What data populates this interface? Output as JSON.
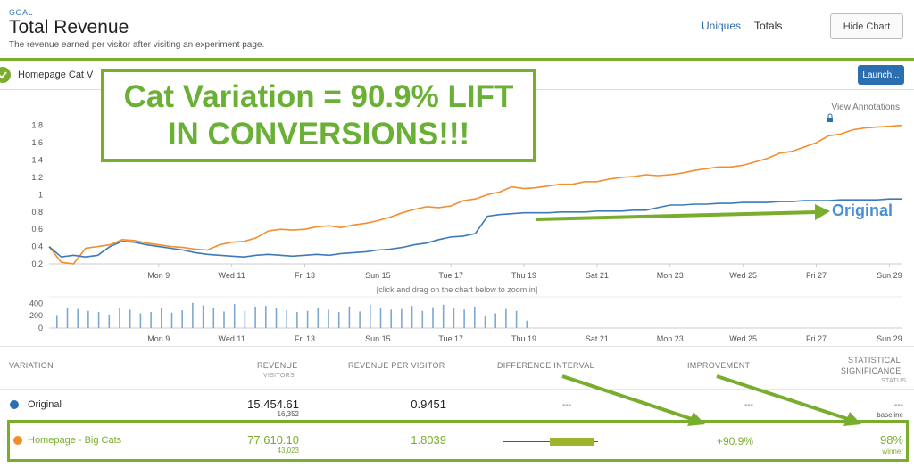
{
  "header": {
    "goal_label": "GOAL",
    "title": "Total Revenue",
    "subtitle": "The revenue earned per visitor after visiting an experiment page.",
    "tabs": [
      "Uniques",
      "Totals"
    ],
    "hide_chart": "Hide Chart"
  },
  "page_row": {
    "page_name": "Homepage Cat V",
    "launch": "Launch..."
  },
  "annotation": {
    "line1": "Cat Variation = 90.9% LIFT",
    "line2": "IN CONVERSIONS!!!",
    "series_label": "Original"
  },
  "chart": {
    "view_annotations": "View Annotations",
    "zoom_hint": "[click and drag on the chart below to zoom in]"
  },
  "chart_data": [
    {
      "type": "line",
      "x": [
        0,
        0.5,
        1,
        1.5,
        2,
        2.5,
        3,
        3.5,
        4,
        4.5,
        5,
        5.5,
        6,
        6.5,
        7,
        7.5,
        8,
        8.5,
        9,
        9.5,
        10,
        10.5,
        11,
        11.5,
        12,
        12.5,
        13,
        13.5,
        14,
        14.5,
        15,
        15.5,
        16,
        16.5,
        17,
        17.5,
        18,
        18.5,
        19,
        19.5,
        20,
        20.5,
        21,
        21.5,
        22,
        22.5,
        23,
        23.5,
        24,
        24.5,
        25,
        25.5,
        26,
        26.5,
        27,
        27.5,
        28,
        28.5,
        29,
        29.5,
        30,
        30.5,
        31,
        31.5,
        32,
        32.5,
        33,
        33.5,
        34,
        34.5,
        35
      ],
      "x_ticks": [
        "Mon 9",
        "Wed 11",
        "Fri 13",
        "Sun 15",
        "Tue 17",
        "Thu 19",
        "Sat 21",
        "Mon 23",
        "Wed 25",
        "Fri 27",
        "Sun 29"
      ],
      "y_ticks": [
        "0.2",
        "0.4",
        "0.6",
        "0.8",
        "1",
        "1.2",
        "1.4",
        "1.6",
        "1.8"
      ],
      "ylim": [
        0.2,
        1.9
      ],
      "series": [
        {
          "color": "#f28e2b",
          "values": [
            0.4,
            0.22,
            0.2,
            0.38,
            0.4,
            0.42,
            0.48,
            0.47,
            0.44,
            0.42,
            0.4,
            0.39,
            0.37,
            0.36,
            0.42,
            0.45,
            0.46,
            0.5,
            0.58,
            0.6,
            0.59,
            0.6,
            0.63,
            0.64,
            0.62,
            0.65,
            0.67,
            0.7,
            0.74,
            0.79,
            0.83,
            0.86,
            0.85,
            0.87,
            0.93,
            0.95,
            1.0,
            1.03,
            1.09,
            1.07,
            1.08,
            1.1,
            1.12,
            1.12,
            1.15,
            1.15,
            1.18,
            1.2,
            1.21,
            1.23,
            1.22,
            1.23,
            1.25,
            1.28,
            1.3,
            1.32,
            1.32,
            1.34,
            1.38,
            1.42,
            1.48,
            1.5,
            1.55,
            1.6,
            1.68,
            1.7,
            1.75,
            1.77,
            1.78,
            1.79,
            1.8
          ]
        },
        {
          "name": "Original",
          "color": "#3d7ab8",
          "values": [
            0.4,
            0.28,
            0.3,
            0.28,
            0.3,
            0.4,
            0.46,
            0.45,
            0.42,
            0.4,
            0.38,
            0.36,
            0.33,
            0.31,
            0.3,
            0.29,
            0.28,
            0.3,
            0.31,
            0.3,
            0.29,
            0.3,
            0.31,
            0.3,
            0.32,
            0.33,
            0.34,
            0.36,
            0.37,
            0.39,
            0.42,
            0.44,
            0.48,
            0.51,
            0.52,
            0.55,
            0.75,
            0.77,
            0.78,
            0.79,
            0.79,
            0.79,
            0.8,
            0.8,
            0.8,
            0.81,
            0.81,
            0.81,
            0.82,
            0.82,
            0.85,
            0.88,
            0.88,
            0.89,
            0.89,
            0.9,
            0.9,
            0.91,
            0.91,
            0.91,
            0.92,
            0.92,
            0.93,
            0.93,
            0.93,
            0.94,
            0.94,
            0.94,
            0.94,
            0.95,
            0.95
          ]
        }
      ]
    },
    {
      "type": "bar",
      "y_ticks": [
        "0",
        "200",
        "400"
      ],
      "ylim": [
        0,
        450
      ],
      "x_ticks": [
        "Mon 9",
        "Wed 11",
        "Fri 13",
        "Sun 15",
        "Tue 17",
        "Thu 19",
        "Sat 21",
        "Mon 23",
        "Wed 25",
        "Fri 27",
        "Sun 29"
      ],
      "values": [
        210,
        330,
        310,
        280,
        260,
        220,
        330,
        300,
        240,
        260,
        330,
        250,
        290,
        410,
        370,
        320,
        270,
        390,
        280,
        350,
        360,
        330,
        290,
        260,
        280,
        320,
        300,
        260,
        350,
        270,
        380,
        320,
        300,
        310,
        360,
        280,
        340,
        380,
        330,
        300,
        350,
        200,
        240,
        310,
        280,
        120
      ]
    }
  ],
  "table": {
    "headers": {
      "variation": "VARIATION",
      "revenue": "REVENUE",
      "revenue_sub": "VISITORS",
      "rpv": "REVENUE PER VISITOR",
      "diff": "DIFFERENCE INTERVAL",
      "improvement": "IMPROVEMENT",
      "sig1": "STATISTICAL",
      "sig2": "SIGNIFICANCE",
      "sig_sub": "STATUS"
    },
    "rows": [
      {
        "name": "Original",
        "revenue": "15,454.61",
        "visitors": "16,352",
        "rpv": "0.9451",
        "diff": "---",
        "improvement": "---",
        "significance": "---",
        "status": "baseline",
        "color": "#2c6fb0"
      },
      {
        "name": "Homepage - Big Cats",
        "revenue": "77,610.10",
        "visitors": "43,023",
        "rpv": "1.8039",
        "diff": "",
        "improvement": "+90.9%",
        "significance": "98%",
        "status": "winner",
        "color": "#f28e2b"
      }
    ]
  }
}
